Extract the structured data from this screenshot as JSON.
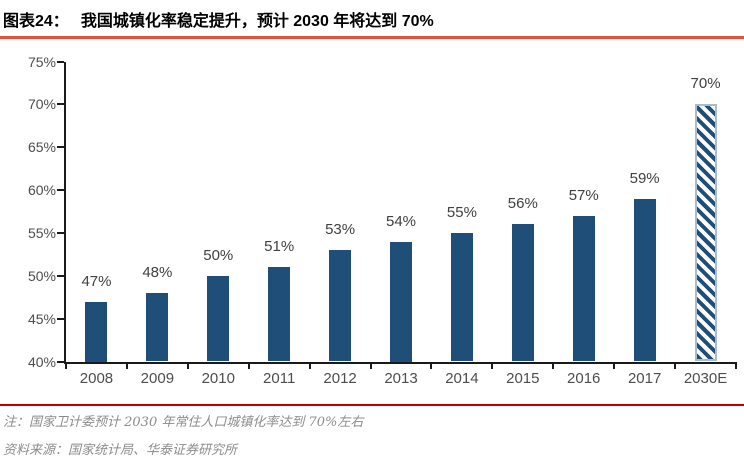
{
  "header": {
    "figure_label": "图表24：",
    "title": "我国城镇化率稳定提升，预计 2030 年将达到 70%"
  },
  "footer": {
    "note": "注：国家卫计委预计 2030 年常住人口城镇化率达到 70%左右",
    "source": "资料来源：国家统计局、华泰证券研究所"
  },
  "colors": {
    "bar_fill": "#1F4E79",
    "hatch_stripe": "#1F4E79",
    "hatch_background": "#FFFFFF",
    "hatch_border": "#A6BCD2",
    "axis": "#1A1A1A",
    "tick_label": "#4D4D4D",
    "value_label": "#404040",
    "title_rule": "#E0543B",
    "footer_rule": "#C00000",
    "note_text": "#8C8C8C"
  },
  "chart_data": {
    "type": "bar",
    "title": "我国城镇化率稳定提升，预计 2030 年将达到 70%",
    "categories": [
      "2008",
      "2009",
      "2010",
      "2011",
      "2012",
      "2013",
      "2014",
      "2015",
      "2016",
      "2017",
      "2030E"
    ],
    "values": [
      47,
      48,
      50,
      51,
      53,
      54,
      55,
      56,
      57,
      59,
      70
    ],
    "value_labels": [
      "47%",
      "48%",
      "50%",
      "51%",
      "53%",
      "54%",
      "55%",
      "56%",
      "57%",
      "59%",
      "70%"
    ],
    "ylim": [
      40,
      75
    ],
    "ytick_step": 5,
    "ytick_labels": [
      "75%",
      "70%",
      "65%",
      "60%",
      "55%",
      "50%",
      "45%",
      "40%"
    ],
    "xlabel": "",
    "ylabel": "",
    "grid": false,
    "legend": "none",
    "hatched_categories": [
      "2030E"
    ],
    "style_note": "solid navy bars for 2008-2017 actuals; 2030E forecast bar drawn with diagonal hatch and light-blue outline"
  }
}
